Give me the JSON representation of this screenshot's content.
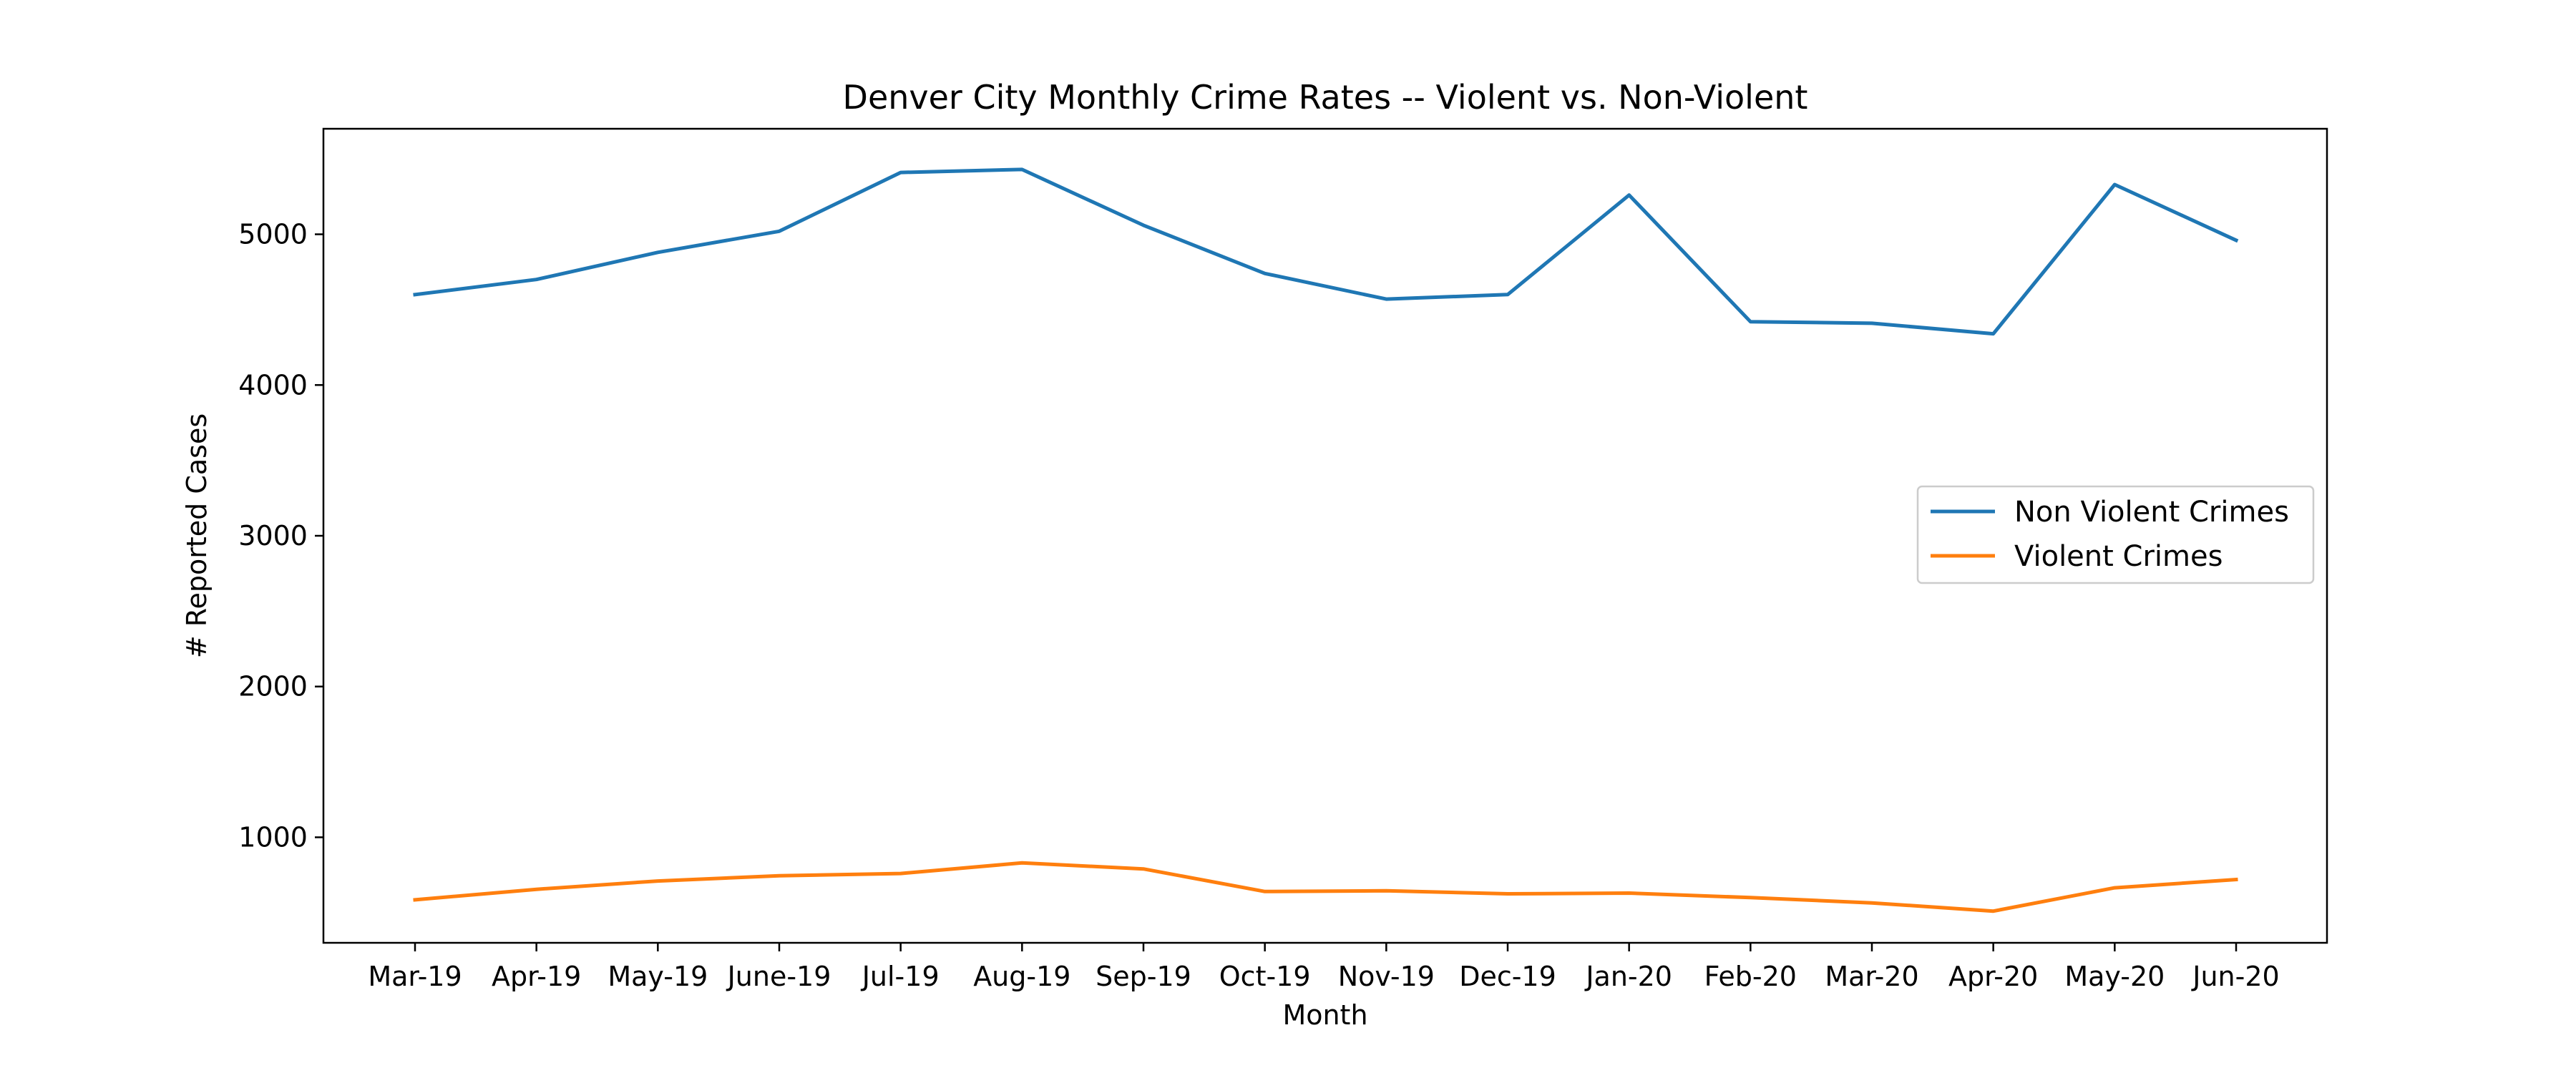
{
  "chart_data": {
    "type": "line",
    "title": "Denver City Monthly Crime Rates -- Violent vs. Non-Violent",
    "xlabel": "Month",
    "ylabel": "# Reported Cases",
    "categories": [
      "Mar-19",
      "Apr-19",
      "May-19",
      "June-19",
      "Jul-19",
      "Aug-19",
      "Sep-19",
      "Oct-19",
      "Nov-19",
      "Dec-19",
      "Jan-20",
      "Feb-20",
      "Mar-20",
      "Apr-20",
      "May-20",
      "Jun-20"
    ],
    "ylim": [
      300,
      5700
    ],
    "yticks": [
      1000,
      2000,
      3000,
      4000,
      5000
    ],
    "grid": false,
    "legend_position": "center-right",
    "series": [
      {
        "name": "Non Violent Crimes",
        "color": "#1f77b4",
        "values": [
          4600,
          4700,
          4880,
          5020,
          5410,
          5430,
          5060,
          4740,
          4570,
          4600,
          5260,
          4420,
          4410,
          4340,
          5330,
          4960
        ]
      },
      {
        "name": "Violent Crimes",
        "color": "#ff7f0e",
        "values": [
          585,
          655,
          710,
          745,
          760,
          830,
          790,
          640,
          645,
          625,
          630,
          600,
          565,
          510,
          665,
          720
        ]
      }
    ]
  }
}
